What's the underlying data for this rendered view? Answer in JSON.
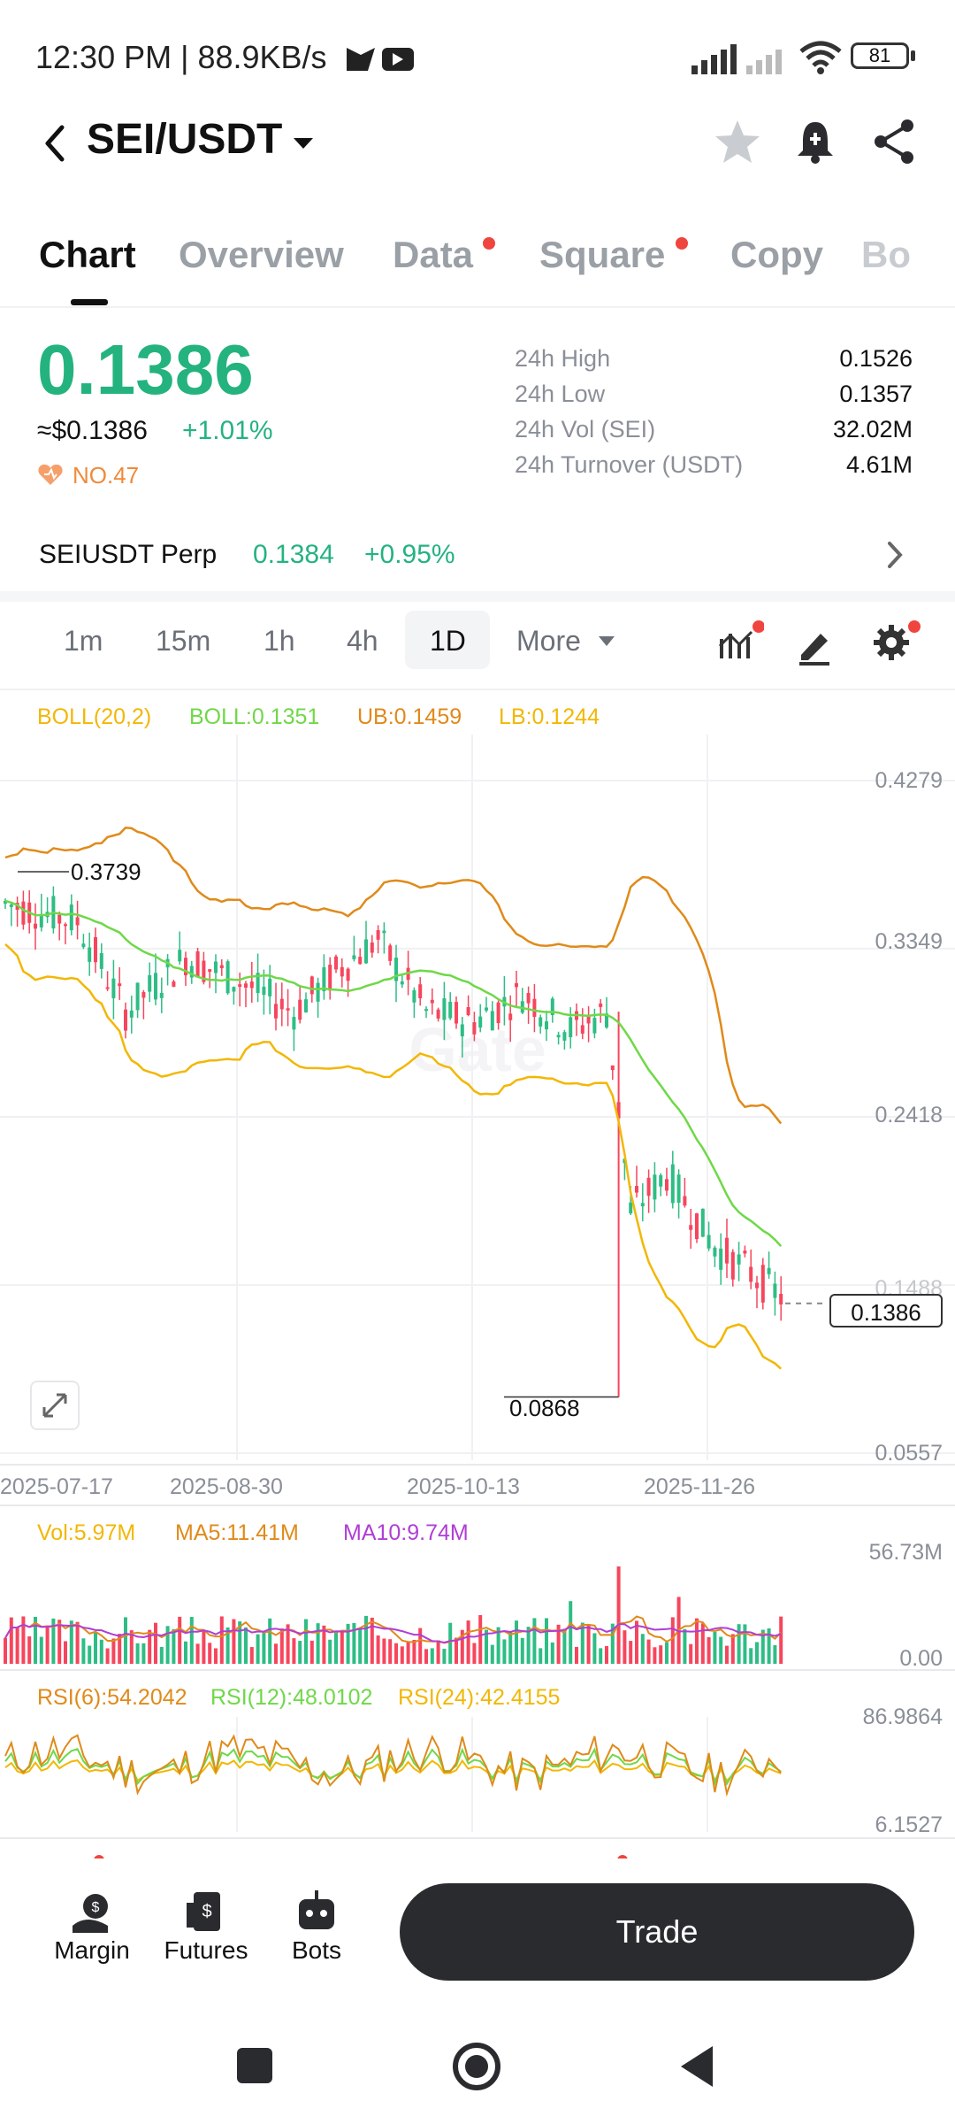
{
  "status_bar": {
    "time": "12:30 PM | 88.9KB/s",
    "battery": "81"
  },
  "header": {
    "pair": "SEI/USDT"
  },
  "tabs": [
    {
      "label": "Chart",
      "active": true,
      "dot": false
    },
    {
      "label": "Overview",
      "active": false,
      "dot": false
    },
    {
      "label": "Data",
      "active": false,
      "dot": true
    },
    {
      "label": "Square",
      "active": false,
      "dot": true
    },
    {
      "label": "Copy",
      "active": false,
      "dot": false
    },
    {
      "label": "Bo",
      "active": false,
      "dot": false
    }
  ],
  "price": {
    "last": "0.1386",
    "usd": "≈$0.1386",
    "change": "+1.01%",
    "rank": "NO.47"
  },
  "stats": [
    {
      "label": "24h High",
      "value": "0.1526"
    },
    {
      "label": "24h Low",
      "value": "0.1357"
    },
    {
      "label": "24h Vol (SEI)",
      "value": "32.02M"
    },
    {
      "label": "24h Turnover (USDT)",
      "value": "4.61M"
    }
  ],
  "perp": {
    "label": "SEIUSDT Perp",
    "price": "0.1384",
    "change": "+0.95%"
  },
  "timeframes": [
    "1m",
    "15m",
    "1h",
    "4h",
    "1D"
  ],
  "timeframe_selected": "1D",
  "more_label": "More",
  "indicators": {
    "boll": {
      "name": "BOLL(20,2)",
      "mid": "BOLL:0.1351",
      "ub": "UB:0.1459",
      "lb": "LB:0.1244"
    },
    "vol": {
      "vol": "Vol:5.97M",
      "ma5": "MA5:11.41M",
      "ma10": "MA10:9.74M"
    },
    "rsi": {
      "r6": "RSI(6):54.2042",
      "r12": "RSI(12):48.0102",
      "r24": "RSI(24):42.4155"
    }
  },
  "chart_data": {
    "type": "candlestick",
    "price_axis": [
      "0.4279",
      "0.3349",
      "0.2418",
      "0.1488",
      "0.0557"
    ],
    "date_axis": [
      "2025-07-17",
      "2025-08-30",
      "2025-10-13",
      "2025-11-26"
    ],
    "high_marker": "0.3739",
    "low_marker": "0.0868",
    "last_price_tag": "0.1386",
    "ylim": [
      0.0557,
      0.4279
    ],
    "vol_axis": [
      "56.73M",
      "0.00"
    ],
    "rsi_axis": [
      "86.9864",
      "6.1527"
    ],
    "colors": {
      "up": "#2ebd85",
      "down": "#f6465d",
      "boll_mid": "#6fd848",
      "boll_upper": "#e08a1a",
      "boll_lower": "#f2b705",
      "ma10": "#b03ed6"
    }
  },
  "bottom_nav": [
    {
      "label": "Margin",
      "icon": "margin-icon"
    },
    {
      "label": "Futures",
      "icon": "futures-icon"
    },
    {
      "label": "Bots",
      "icon": "bots-icon"
    }
  ],
  "trade_label": "Trade"
}
